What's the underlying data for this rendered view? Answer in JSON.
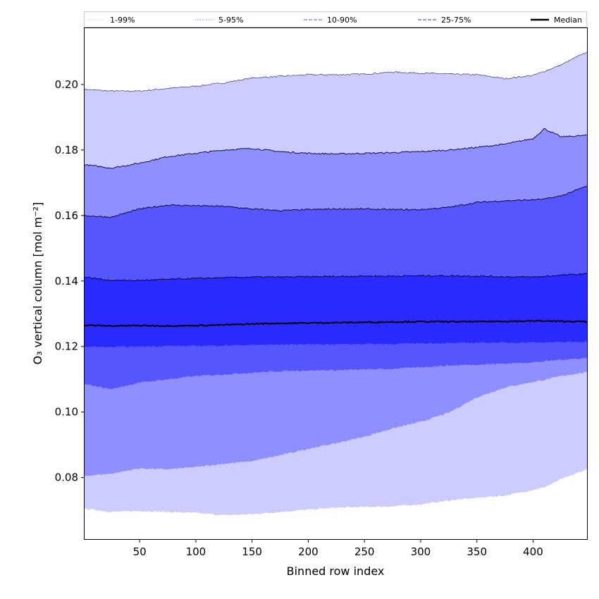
{
  "chart_data": {
    "type": "area",
    "title": "",
    "xlabel": "Binned row index",
    "ylabel": "O₃ vertical column [mol m⁻²]",
    "xlim": [
      1,
      448
    ],
    "ylim": [
      0.0612,
      0.2172
    ],
    "xticks": [
      50,
      100,
      150,
      200,
      250,
      300,
      350,
      400
    ],
    "yticks": [
      0.08,
      0.1,
      0.12,
      0.14,
      0.16,
      0.18,
      0.2
    ],
    "ytick_labels": [
      "0.08",
      "0.10",
      "0.12",
      "0.14",
      "0.16",
      "0.18",
      "0.20"
    ],
    "legend_position": "top",
    "x": [
      1,
      25,
      50,
      75,
      100,
      125,
      150,
      175,
      200,
      225,
      250,
      275,
      300,
      325,
      350,
      375,
      400,
      410,
      425,
      448
    ],
    "bands": [
      {
        "name": "1-99%",
        "color": "#ccccff",
        "line_color": "#1a1a66",
        "lower": [
          0.0705,
          0.0695,
          0.0698,
          0.0695,
          0.0692,
          0.0685,
          0.0688,
          0.0695,
          0.0702,
          0.0708,
          0.071,
          0.0712,
          0.0718,
          0.073,
          0.0738,
          0.0745,
          0.0762,
          0.077,
          0.0795,
          0.0825
        ],
        "upper": [
          0.1985,
          0.198,
          0.198,
          0.1988,
          0.1995,
          0.2005,
          0.202,
          0.2025,
          0.203,
          0.203,
          0.2032,
          0.2038,
          0.2035,
          0.2032,
          0.203,
          0.2018,
          0.2028,
          0.204,
          0.206,
          0.21
        ]
      },
      {
        "name": "5-95%",
        "color": "#8f8fff",
        "line_color": "#000033",
        "lower": [
          0.0805,
          0.0812,
          0.0828,
          0.0825,
          0.0832,
          0.0842,
          0.085,
          0.0868,
          0.0888,
          0.0905,
          0.0925,
          0.095,
          0.097,
          0.0998,
          0.1045,
          0.1075,
          0.1092,
          0.1098,
          0.111,
          0.1122
        ],
        "upper": [
          0.1755,
          0.1745,
          0.176,
          0.178,
          0.179,
          0.18,
          0.1805,
          0.1795,
          0.179,
          0.1788,
          0.179,
          0.1792,
          0.1795,
          0.18,
          0.1808,
          0.1818,
          0.1835,
          0.1865,
          0.184,
          0.1845
        ]
      },
      {
        "name": "10-90%",
        "color": "#5656ff",
        "line_color": "#000033",
        "lower": [
          0.1085,
          0.107,
          0.109,
          0.11,
          0.111,
          0.1115,
          0.112,
          0.1125,
          0.1127,
          0.1128,
          0.113,
          0.1132,
          0.1137,
          0.1142,
          0.1145,
          0.1148,
          0.1152,
          0.1155,
          0.116,
          0.1165
        ],
        "upper": [
          0.16,
          0.1595,
          0.162,
          0.1632,
          0.163,
          0.1628,
          0.162,
          0.1615,
          0.1618,
          0.162,
          0.162,
          0.1618,
          0.1618,
          0.1625,
          0.164,
          0.1645,
          0.1648,
          0.165,
          0.166,
          0.169
        ]
      },
      {
        "name": "25-75%",
        "color": "#2a2aff",
        "line_color": "#000033",
        "lower": [
          0.12,
          0.1198,
          0.12,
          0.1202,
          0.1202,
          0.1203,
          0.1205,
          0.1206,
          0.1207,
          0.1207,
          0.1208,
          0.1208,
          0.121,
          0.121,
          0.1212,
          0.1212,
          0.1213,
          0.1213,
          0.1213,
          0.1215
        ],
        "upper": [
          0.1412,
          0.1402,
          0.1402,
          0.1405,
          0.1408,
          0.141,
          0.1412,
          0.1412,
          0.1413,
          0.1414,
          0.1415,
          0.1415,
          0.1416,
          0.1416,
          0.1415,
          0.1413,
          0.1412,
          0.1414,
          0.1418,
          0.1422
        ]
      }
    ],
    "median": {
      "name": "Median",
      "color": "#000000",
      "values": [
        0.1265,
        0.1263,
        0.1264,
        0.1263,
        0.1264,
        0.1266,
        0.1269,
        0.1271,
        0.1272,
        0.1273,
        0.1274,
        0.1275,
        0.1276,
        0.1276,
        0.1276,
        0.1277,
        0.1278,
        0.1278,
        0.1277,
        0.1276
      ]
    },
    "legend": [
      {
        "label": "1-99%",
        "color": "#ccccff",
        "style": "dotted"
      },
      {
        "label": "5-95%",
        "color": "#8f8fff",
        "style": "dotted"
      },
      {
        "label": "10-90%",
        "color": "#5656ff",
        "style": "dashed"
      },
      {
        "label": "25-75%",
        "color": "#2a2aff",
        "style": "dashed"
      },
      {
        "label": "Median",
        "color": "#000000",
        "style": "solid"
      }
    ]
  }
}
